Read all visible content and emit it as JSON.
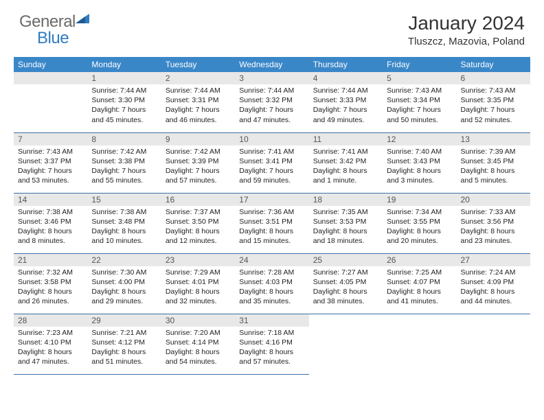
{
  "logo": {
    "text1": "General",
    "text2": "Blue",
    "color1": "#6a6a6a",
    "color2": "#2f7bbf"
  },
  "title": "January 2024",
  "location": "Tluszcz, Mazovia, Poland",
  "header_bg": "#3a87c8",
  "header_fg": "#ffffff",
  "band_bg": "#e8e8e8",
  "border_color": "#3a6ea5",
  "days_of_week": [
    "Sunday",
    "Monday",
    "Tuesday",
    "Wednesday",
    "Thursday",
    "Friday",
    "Saturday"
  ],
  "weeks": [
    [
      null,
      {
        "n": "1",
        "sr": "Sunrise: 7:44 AM",
        "ss": "Sunset: 3:30 PM",
        "dl": "Daylight: 7 hours and 45 minutes."
      },
      {
        "n": "2",
        "sr": "Sunrise: 7:44 AM",
        "ss": "Sunset: 3:31 PM",
        "dl": "Daylight: 7 hours and 46 minutes."
      },
      {
        "n": "3",
        "sr": "Sunrise: 7:44 AM",
        "ss": "Sunset: 3:32 PM",
        "dl": "Daylight: 7 hours and 47 minutes."
      },
      {
        "n": "4",
        "sr": "Sunrise: 7:44 AM",
        "ss": "Sunset: 3:33 PM",
        "dl": "Daylight: 7 hours and 49 minutes."
      },
      {
        "n": "5",
        "sr": "Sunrise: 7:43 AM",
        "ss": "Sunset: 3:34 PM",
        "dl": "Daylight: 7 hours and 50 minutes."
      },
      {
        "n": "6",
        "sr": "Sunrise: 7:43 AM",
        "ss": "Sunset: 3:35 PM",
        "dl": "Daylight: 7 hours and 52 minutes."
      }
    ],
    [
      {
        "n": "7",
        "sr": "Sunrise: 7:43 AM",
        "ss": "Sunset: 3:37 PM",
        "dl": "Daylight: 7 hours and 53 minutes."
      },
      {
        "n": "8",
        "sr": "Sunrise: 7:42 AM",
        "ss": "Sunset: 3:38 PM",
        "dl": "Daylight: 7 hours and 55 minutes."
      },
      {
        "n": "9",
        "sr": "Sunrise: 7:42 AM",
        "ss": "Sunset: 3:39 PM",
        "dl": "Daylight: 7 hours and 57 minutes."
      },
      {
        "n": "10",
        "sr": "Sunrise: 7:41 AM",
        "ss": "Sunset: 3:41 PM",
        "dl": "Daylight: 7 hours and 59 minutes."
      },
      {
        "n": "11",
        "sr": "Sunrise: 7:41 AM",
        "ss": "Sunset: 3:42 PM",
        "dl": "Daylight: 8 hours and 1 minute."
      },
      {
        "n": "12",
        "sr": "Sunrise: 7:40 AM",
        "ss": "Sunset: 3:43 PM",
        "dl": "Daylight: 8 hours and 3 minutes."
      },
      {
        "n": "13",
        "sr": "Sunrise: 7:39 AM",
        "ss": "Sunset: 3:45 PM",
        "dl": "Daylight: 8 hours and 5 minutes."
      }
    ],
    [
      {
        "n": "14",
        "sr": "Sunrise: 7:38 AM",
        "ss": "Sunset: 3:46 PM",
        "dl": "Daylight: 8 hours and 8 minutes."
      },
      {
        "n": "15",
        "sr": "Sunrise: 7:38 AM",
        "ss": "Sunset: 3:48 PM",
        "dl": "Daylight: 8 hours and 10 minutes."
      },
      {
        "n": "16",
        "sr": "Sunrise: 7:37 AM",
        "ss": "Sunset: 3:50 PM",
        "dl": "Daylight: 8 hours and 12 minutes."
      },
      {
        "n": "17",
        "sr": "Sunrise: 7:36 AM",
        "ss": "Sunset: 3:51 PM",
        "dl": "Daylight: 8 hours and 15 minutes."
      },
      {
        "n": "18",
        "sr": "Sunrise: 7:35 AM",
        "ss": "Sunset: 3:53 PM",
        "dl": "Daylight: 8 hours and 18 minutes."
      },
      {
        "n": "19",
        "sr": "Sunrise: 7:34 AM",
        "ss": "Sunset: 3:55 PM",
        "dl": "Daylight: 8 hours and 20 minutes."
      },
      {
        "n": "20",
        "sr": "Sunrise: 7:33 AM",
        "ss": "Sunset: 3:56 PM",
        "dl": "Daylight: 8 hours and 23 minutes."
      }
    ],
    [
      {
        "n": "21",
        "sr": "Sunrise: 7:32 AM",
        "ss": "Sunset: 3:58 PM",
        "dl": "Daylight: 8 hours and 26 minutes."
      },
      {
        "n": "22",
        "sr": "Sunrise: 7:30 AM",
        "ss": "Sunset: 4:00 PM",
        "dl": "Daylight: 8 hours and 29 minutes."
      },
      {
        "n": "23",
        "sr": "Sunrise: 7:29 AM",
        "ss": "Sunset: 4:01 PM",
        "dl": "Daylight: 8 hours and 32 minutes."
      },
      {
        "n": "24",
        "sr": "Sunrise: 7:28 AM",
        "ss": "Sunset: 4:03 PM",
        "dl": "Daylight: 8 hours and 35 minutes."
      },
      {
        "n": "25",
        "sr": "Sunrise: 7:27 AM",
        "ss": "Sunset: 4:05 PM",
        "dl": "Daylight: 8 hours and 38 minutes."
      },
      {
        "n": "26",
        "sr": "Sunrise: 7:25 AM",
        "ss": "Sunset: 4:07 PM",
        "dl": "Daylight: 8 hours and 41 minutes."
      },
      {
        "n": "27",
        "sr": "Sunrise: 7:24 AM",
        "ss": "Sunset: 4:09 PM",
        "dl": "Daylight: 8 hours and 44 minutes."
      }
    ],
    [
      {
        "n": "28",
        "sr": "Sunrise: 7:23 AM",
        "ss": "Sunset: 4:10 PM",
        "dl": "Daylight: 8 hours and 47 minutes."
      },
      {
        "n": "29",
        "sr": "Sunrise: 7:21 AM",
        "ss": "Sunset: 4:12 PM",
        "dl": "Daylight: 8 hours and 51 minutes."
      },
      {
        "n": "30",
        "sr": "Sunrise: 7:20 AM",
        "ss": "Sunset: 4:14 PM",
        "dl": "Daylight: 8 hours and 54 minutes."
      },
      {
        "n": "31",
        "sr": "Sunrise: 7:18 AM",
        "ss": "Sunset: 4:16 PM",
        "dl": "Daylight: 8 hours and 57 minutes."
      },
      null,
      null,
      null
    ]
  ]
}
